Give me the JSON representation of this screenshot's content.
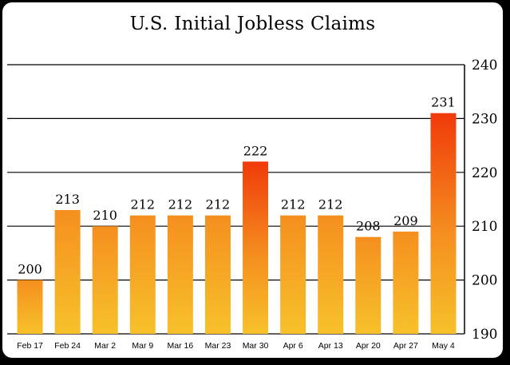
{
  "chart_data": {
    "type": "bar",
    "title": "U.S. Initial Jobless Claims",
    "xlabel": "",
    "ylabel": "",
    "categories": [
      "Feb 17",
      "Feb 24",
      "Mar 2",
      "Mar 9",
      "Mar 16",
      "Mar 23",
      "Mar 30",
      "Apr 6",
      "Apr 13",
      "Apr 20",
      "Apr 27",
      "May 4"
    ],
    "values": [
      200,
      213,
      210,
      212,
      212,
      212,
      222,
      212,
      212,
      208,
      209,
      231
    ],
    "ylim": [
      190,
      240
    ],
    "yticks": [
      190,
      200,
      210,
      220,
      230,
      240
    ],
    "grid": true,
    "yaxis_side": "right",
    "colors": {
      "bar_bottom": "#f7c12a",
      "bar_mid": "#f58f1f",
      "bar_top_high": "#f03a0a",
      "grid": "#000000"
    }
  }
}
